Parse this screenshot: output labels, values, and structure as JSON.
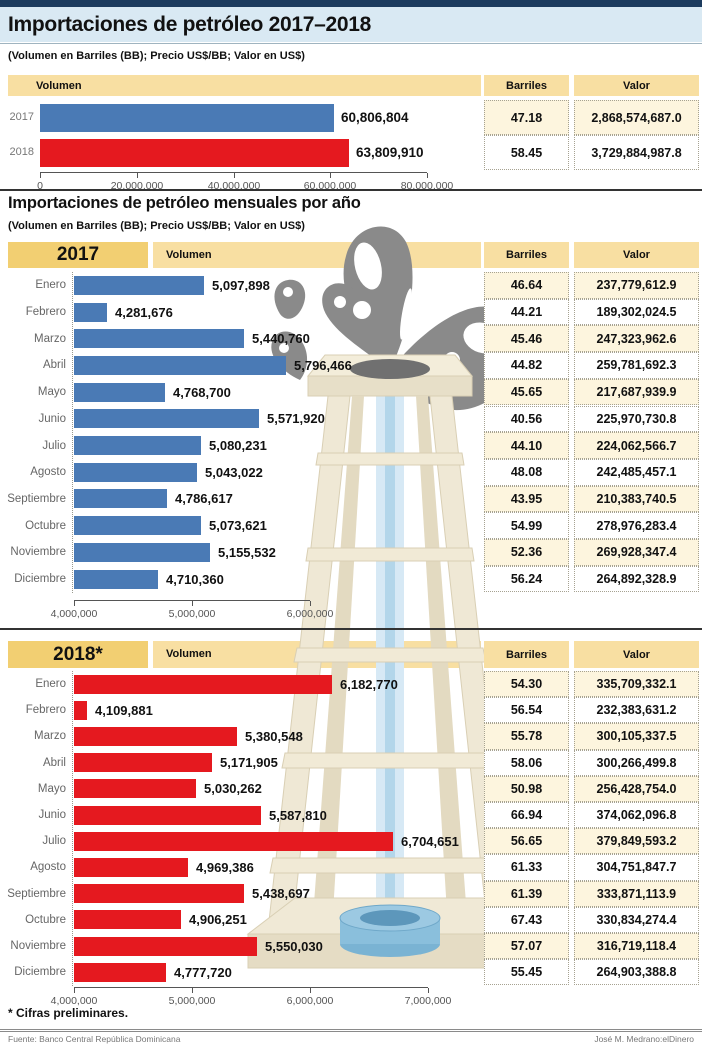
{
  "page": {
    "title": "Importaciones de petróleo 2017–2018",
    "subtitle": "(Volumen en Barriles (BB); Precio US$/BB; Valor en US$)",
    "monthly_title": "Importaciones de petróleo mensuales por año",
    "monthly_subtitle": "(Volumen en Barriles (BB); Precio US$/BB; Valor en US$)",
    "footnote": "* Cifras preliminares.",
    "source": "Fuente: Banco Central República Dominicana",
    "credit": "José M. Medrano:elDinero"
  },
  "columns": {
    "volumen": "Volumen",
    "barriles": "Barriles",
    "valor": "Valor"
  },
  "colors": {
    "top_bar": "#1c3b5e",
    "title_band": "#d9e9f3",
    "gold_band": "#f8dfa2",
    "year_cell": "#f2cf72",
    "cream_row": "#fdf5de",
    "bar_2017": "#4a7ab5",
    "bar_2018": "#e5191f"
  },
  "chart_data": [
    {
      "type": "bar",
      "title": "Importaciones de petróleo 2017–2018",
      "orientation": "horizontal",
      "xlim": [
        0,
        80000000
      ],
      "ticks": [
        "0",
        "20,000,000",
        "40,000,000",
        "60,000,000",
        "80,000,000"
      ],
      "rows": [
        {
          "label": "2017",
          "volumen": "60,806,804",
          "volumen_num": 60806804,
          "barriles": "47.18",
          "valor": "2,868,574,687.0"
        },
        {
          "label": "2018",
          "volumen": "63,809,910",
          "volumen_num": 63809910,
          "barriles": "58.45",
          "valor": "3,729,884,987.8"
        }
      ]
    },
    {
      "type": "bar",
      "year": "2017",
      "orientation": "horizontal",
      "bar_color": "#4a7ab5",
      "xlim": [
        4000000,
        6000000
      ],
      "ticks": [
        "4,000,000",
        "5,000,000",
        "6,000,000"
      ],
      "rows": [
        {
          "month": "Enero",
          "volumen": "5,097,898",
          "volumen_num": 5097898,
          "barriles": "46.64",
          "valor": "237,779,612.9"
        },
        {
          "month": "Febrero",
          "volumen": "4,281,676",
          "volumen_num": 4281676,
          "barriles": "44.21",
          "valor": "189,302,024.5"
        },
        {
          "month": "Marzo",
          "volumen": "5,440,760",
          "volumen_num": 5440760,
          "barriles": "45.46",
          "valor": "247,323,962.6"
        },
        {
          "month": "Abril",
          "volumen": "5,796,466",
          "volumen_num": 5796466,
          "barriles": "44.82",
          "valor": "259,781,692.3"
        },
        {
          "month": "Mayo",
          "volumen": "4,768,700",
          "volumen_num": 4768700,
          "barriles": "45.65",
          "valor": "217,687,939.9"
        },
        {
          "month": "Junio",
          "volumen": "5,571,920",
          "volumen_num": 5571920,
          "barriles": "40.56",
          "valor": "225,970,730.8"
        },
        {
          "month": "Julio",
          "volumen": "5,080,231",
          "volumen_num": 5080231,
          "barriles": "44.10",
          "valor": "224,062,566.7"
        },
        {
          "month": "Agosto",
          "volumen": "5,043,022",
          "volumen_num": 5043022,
          "barriles": "48.08",
          "valor": "242,485,457.1"
        },
        {
          "month": "Septiembre",
          "volumen": "4,786,617",
          "volumen_num": 4786617,
          "barriles": "43.95",
          "valor": "210,383,740.5"
        },
        {
          "month": "Octubre",
          "volumen": "5,073,621",
          "volumen_num": 5073621,
          "barriles": "54.99",
          "valor": "278,976,283.4"
        },
        {
          "month": "Noviembre",
          "volumen": "5,155,532",
          "volumen_num": 5155532,
          "barriles": "52.36",
          "valor": "269,928,347.4"
        },
        {
          "month": "Diciembre",
          "volumen": "4,710,360",
          "volumen_num": 4710360,
          "barriles": "56.24",
          "valor": "264,892,328.9"
        }
      ]
    },
    {
      "type": "bar",
      "year": "2018*",
      "orientation": "horizontal",
      "bar_color": "#e5191f",
      "xlim": [
        4000000,
        7000000
      ],
      "ticks": [
        "4,000,000",
        "5,000,000",
        "6,000,000",
        "7,000,000"
      ],
      "rows": [
        {
          "month": "Enero",
          "volumen": "6,182,770",
          "volumen_num": 6182770,
          "barriles": "54.30",
          "valor": "335,709,332.1"
        },
        {
          "month": "Febrero",
          "volumen": "4,109,881",
          "volumen_num": 4109881,
          "barriles": "56.54",
          "valor": "232,383,631.2"
        },
        {
          "month": "Marzo",
          "volumen": "5,380,548",
          "volumen_num": 5380548,
          "barriles": "55.78",
          "valor": "300,105,337.5"
        },
        {
          "month": "Abril",
          "volumen": "5,171,905",
          "volumen_num": 5171905,
          "barriles": "58.06",
          "valor": "300,266,499.8"
        },
        {
          "month": "Mayo",
          "volumen": "5,030,262",
          "volumen_num": 5030262,
          "barriles": "50.98",
          "valor": "256,428,754.0"
        },
        {
          "month": "Junio",
          "volumen": "5,587,810",
          "volumen_num": 5587810,
          "barriles": "66.94",
          "valor": "374,062,096.8"
        },
        {
          "month": "Julio",
          "volumen": "6,704,651",
          "volumen_num": 6704651,
          "barriles": "56.65",
          "valor": "379,849,593.2"
        },
        {
          "month": "Agosto",
          "volumen": "4,969,386",
          "volumen_num": 4969386,
          "barriles": "61.33",
          "valor": "304,751,847.7"
        },
        {
          "month": "Septiembre",
          "volumen": "5,438,697",
          "volumen_num": 5438697,
          "barriles": "61.39",
          "valor": "333,871,113.9"
        },
        {
          "month": "Octubre",
          "volumen": "4,906,251",
          "volumen_num": 4906251,
          "barriles": "67.43",
          "valor": "330,834,274.4"
        },
        {
          "month": "Noviembre",
          "volumen": "5,550,030",
          "volumen_num": 5550030,
          "barriles": "57.07",
          "valor": "316,719,118.4"
        },
        {
          "month": "Diciembre",
          "volumen": "4,777,720",
          "volumen_num": 4777720,
          "barriles": "55.45",
          "valor": "264,903,388.8"
        }
      ]
    }
  ]
}
